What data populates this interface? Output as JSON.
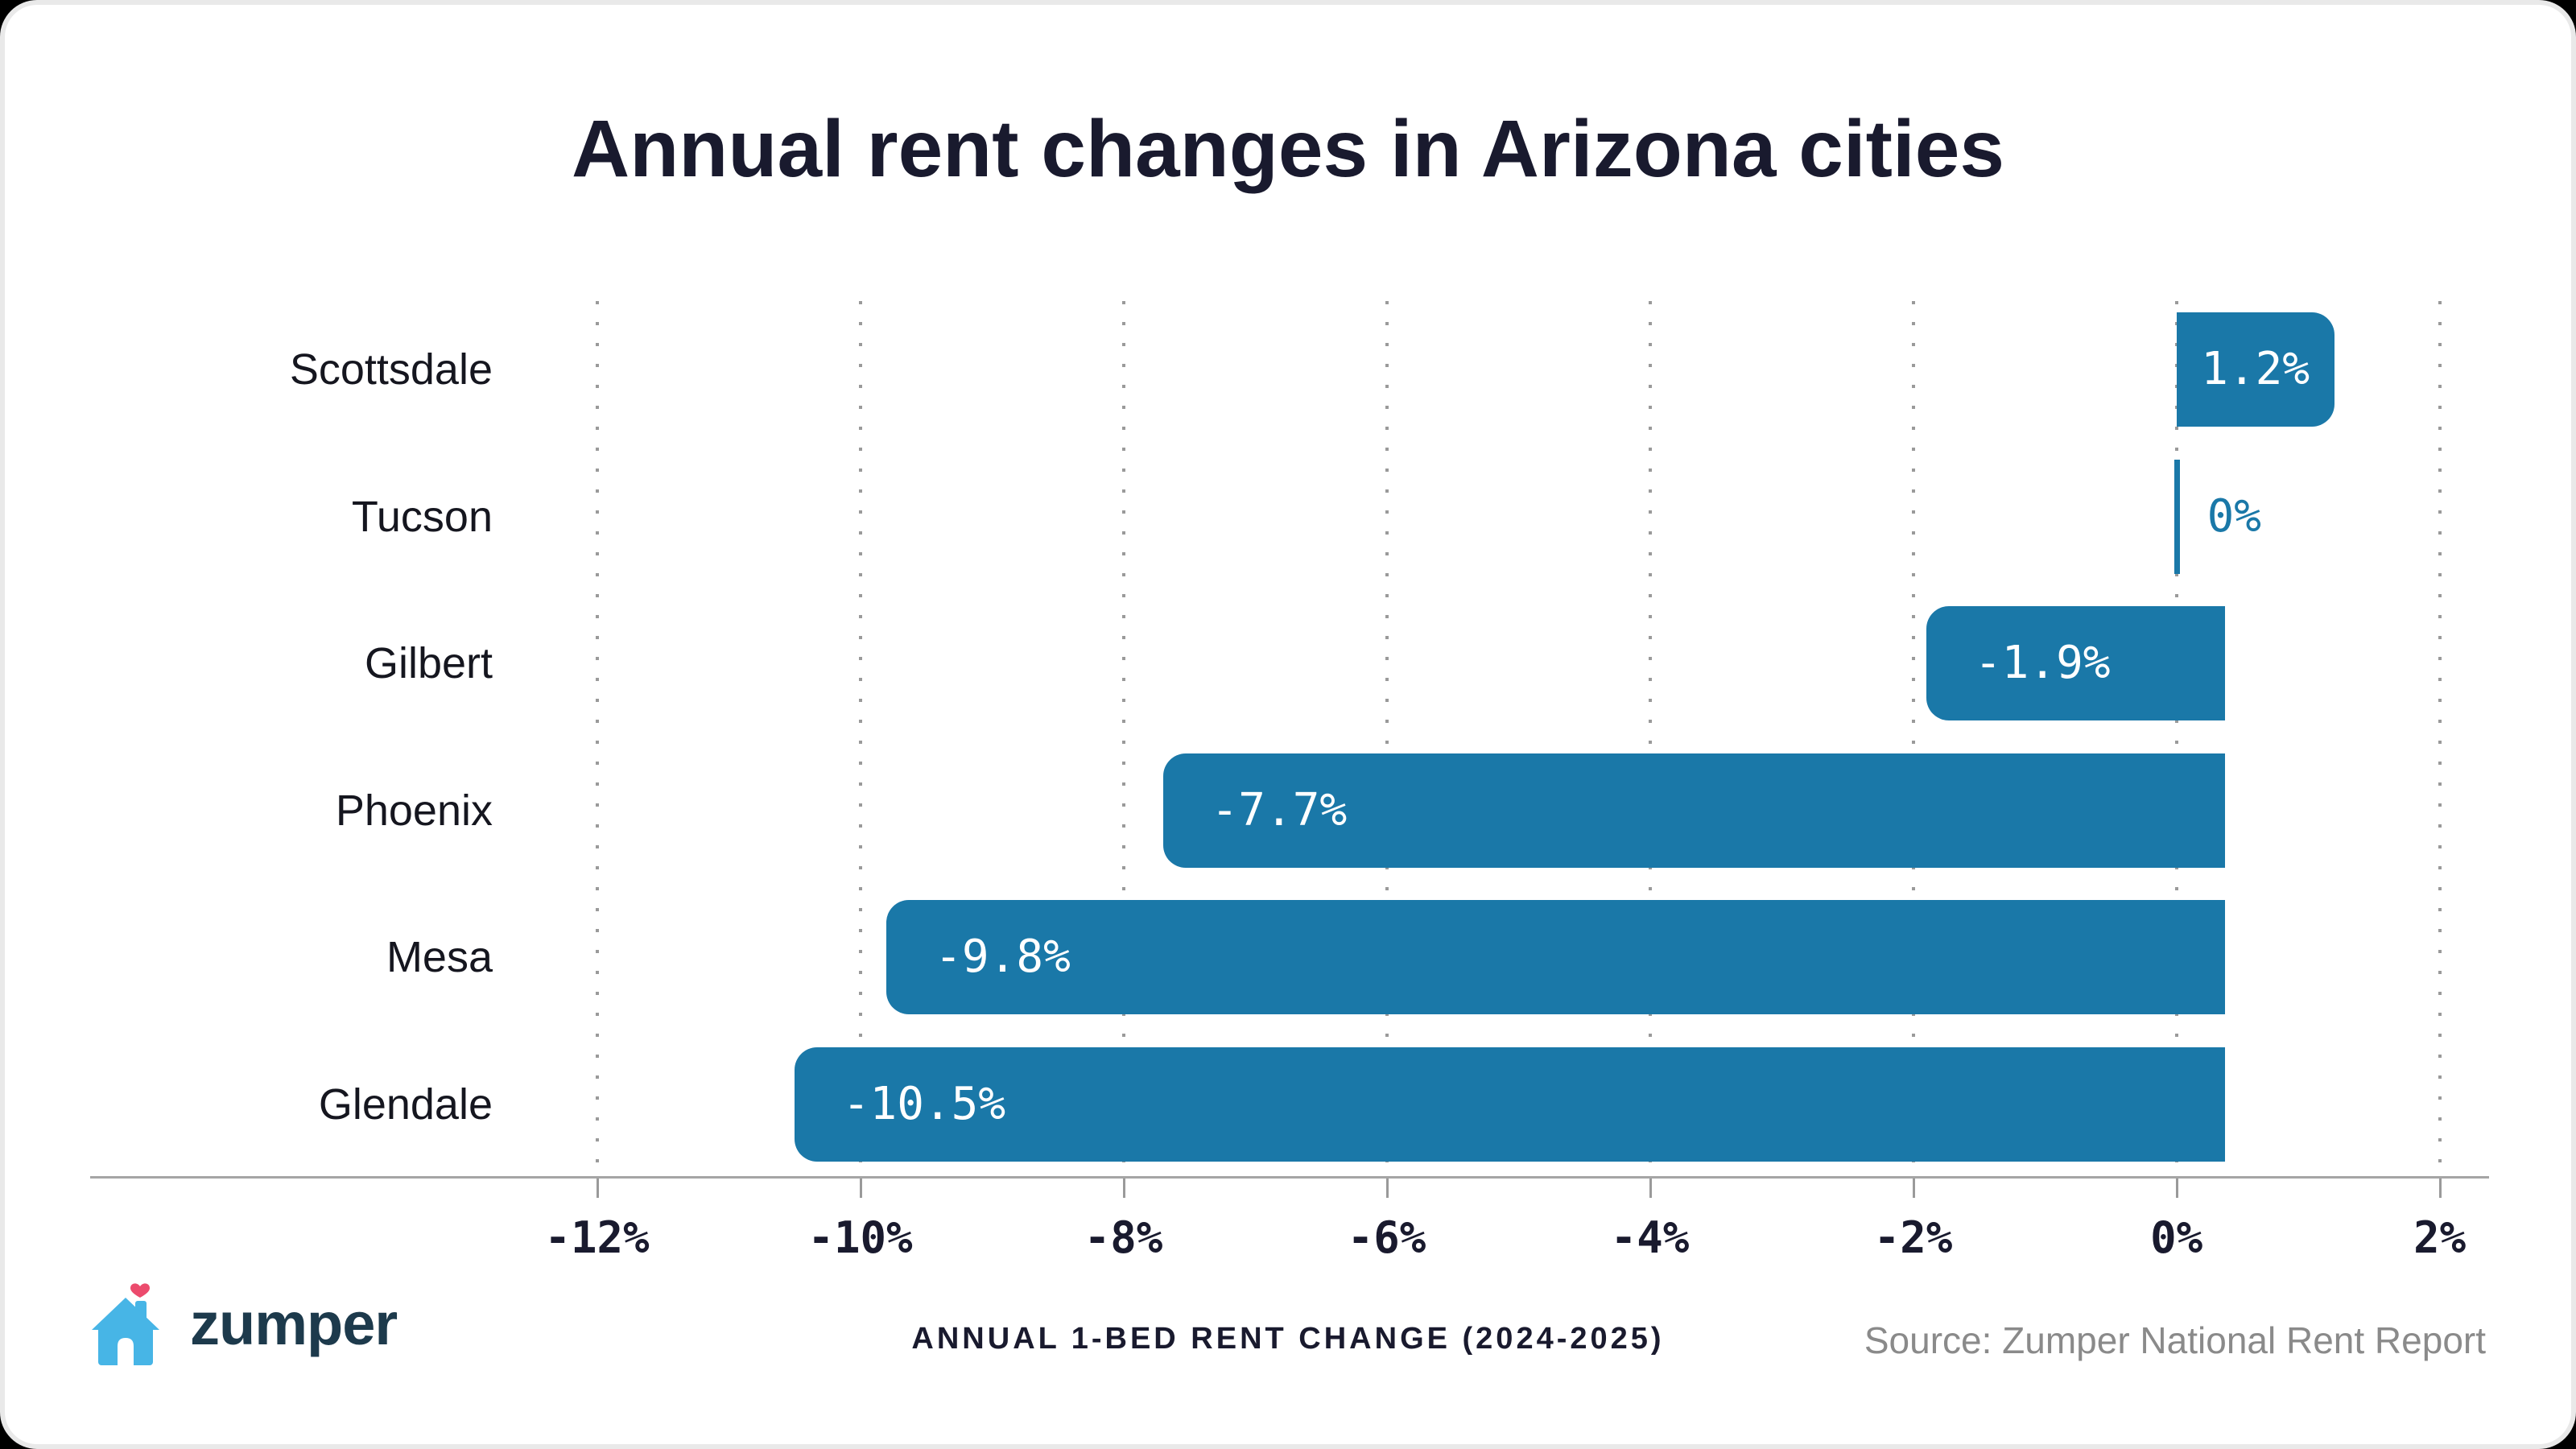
{
  "frame": {
    "outer_background": "#000000",
    "border_color": "#e9e9e9",
    "card_background": "#ffffff"
  },
  "title": {
    "text": "Annual rent changes in Arizona cities",
    "color": "#191a2e"
  },
  "chart_data": {
    "type": "bar",
    "orientation": "horizontal",
    "title": "Annual rent changes in Arizona cities",
    "categories": [
      "Scottsdale",
      "Tucson",
      "Gilbert",
      "Phoenix",
      "Mesa",
      "Glendale"
    ],
    "values": [
      1.2,
      0,
      -1.9,
      -7.7,
      -9.8,
      -10.5
    ],
    "value_labels": [
      "1.2%",
      "0%",
      "-1.9%",
      "-7.7%",
      "-9.8%",
      "-10.5%"
    ],
    "xlim": [
      -13,
      2.4
    ],
    "xticks": [
      -12,
      -10,
      -8,
      -6,
      -4,
      -2,
      0,
      2
    ],
    "xtick_labels": [
      "-12%",
      "-10%",
      "-8%",
      "-6%",
      "-4%",
      "-2%",
      "0%",
      "2%"
    ],
    "grid": "dotted vertical gridlines at each tick",
    "legend": "none",
    "bar_color": "#1a78a8",
    "bar_label_color": "#ffffff",
    "zero_bar_label_color": "#1a78a8",
    "category_label_color": "#15161f",
    "tick_label_color": "#191a2e",
    "gridline_color": "#9a9a9a",
    "axis_line_color": "#a5a5a5"
  },
  "footer": {
    "brand": {
      "name": "zumper",
      "wordmark_color": "#1d3a4c",
      "house_color": "#47b5e6",
      "heart_color": "#ec4b6d",
      "door_color": "#ffffff"
    },
    "caption": "ANNUAL 1-BED RENT CHANGE (2024-2025)",
    "source": "Source: Zumper National Rent Report"
  }
}
